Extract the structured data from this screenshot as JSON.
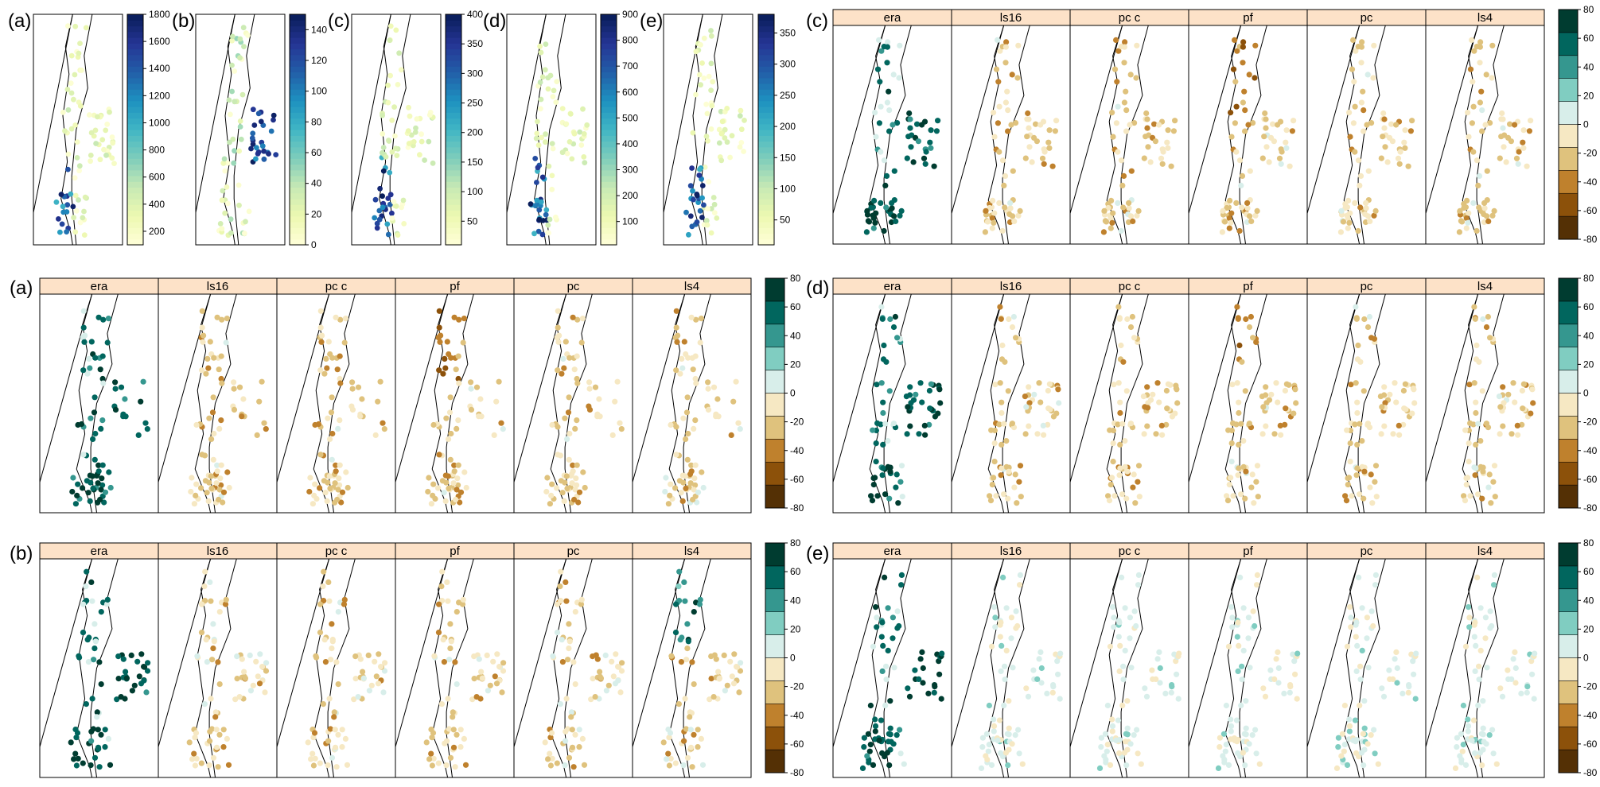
{
  "figure": {
    "panel_labels": [
      "(a)",
      "(b)",
      "(c)",
      "(d)",
      "(e)"
    ]
  },
  "chart_data": [
    {
      "id": "top-a",
      "type": "scatter",
      "label": "(a)",
      "colormap": "YlGnBu",
      "clim": [
        100,
        1800
      ],
      "colorbar_ticks": [
        200,
        400,
        600,
        800,
        1000,
        1200,
        1400,
        1600,
        1800
      ],
      "seed": 11,
      "n": 85
    },
    {
      "id": "top-b",
      "type": "scatter",
      "label": "(b)",
      "colormap": "YlGnBu",
      "clim": [
        0,
        150
      ],
      "colorbar_ticks": [
        0,
        20,
        40,
        60,
        80,
        100,
        120,
        140
      ],
      "seed": 23,
      "n": 80
    },
    {
      "id": "top-c",
      "type": "scatter",
      "label": "(c)",
      "colormap": "YlGnBu",
      "clim": [
        10,
        400
      ],
      "colorbar_ticks": [
        50,
        100,
        150,
        200,
        250,
        300,
        350,
        400
      ],
      "seed": 37,
      "n": 85
    },
    {
      "id": "top-d",
      "type": "scatter",
      "label": "(d)",
      "colormap": "YlGnBu",
      "clim": [
        10,
        900
      ],
      "colorbar_ticks": [
        100,
        200,
        300,
        400,
        500,
        600,
        700,
        800,
        900
      ],
      "seed": 41,
      "n": 85
    },
    {
      "id": "top-e",
      "type": "scatter",
      "label": "(e)",
      "colormap": "YlGnBu",
      "clim": [
        10,
        380
      ],
      "colorbar_ticks": [
        50,
        100,
        150,
        200,
        250,
        300,
        350
      ],
      "seed": 53,
      "n": 85
    },
    {
      "id": "grid-c",
      "type": "scatter",
      "label": "(c)",
      "colormap": "BrBG",
      "clim": [
        -80,
        80
      ],
      "colorbar_ticks": [
        -80,
        -60,
        -40,
        -20,
        0,
        20,
        40,
        60,
        80
      ],
      "strips": [
        "era",
        "ls16",
        "pc_c",
        "pf",
        "pc",
        "ls4"
      ],
      "profile": "dry"
    },
    {
      "id": "grid-a",
      "type": "scatter",
      "label": "(a)",
      "colormap": "BrBG",
      "clim": [
        -80,
        80
      ],
      "colorbar_ticks": [
        -80,
        -60,
        -40,
        -20,
        0,
        20,
        40,
        60,
        80
      ],
      "strips": [
        "era",
        "ls16",
        "pc_c",
        "pf",
        "pc",
        "ls4"
      ],
      "profile": "dry"
    },
    {
      "id": "grid-d",
      "type": "scatter",
      "label": "(d)",
      "colormap": "BrBG",
      "clim": [
        -80,
        80
      ],
      "colorbar_ticks": [
        -80,
        -60,
        -40,
        -20,
        0,
        20,
        40,
        60,
        80
      ],
      "strips": [
        "era",
        "ls16",
        "pc_c",
        "pf",
        "pc",
        "ls4"
      ],
      "profile": "dry"
    },
    {
      "id": "grid-b",
      "type": "scatter",
      "label": "(b)",
      "colormap": "BrBG",
      "clim": [
        -80,
        80
      ],
      "colorbar_ticks": [
        -80,
        -60,
        -40,
        -20,
        0,
        20,
        40,
        60,
        80
      ],
      "strips": [
        "era",
        "ls16",
        "pc_c",
        "pf",
        "pc",
        "ls4"
      ],
      "profile": "mixed"
    },
    {
      "id": "grid-e",
      "type": "scatter",
      "label": "(e)",
      "colormap": "BrBG",
      "clim": [
        -80,
        80
      ],
      "colorbar_ticks": [
        -80,
        -60,
        -40,
        -20,
        0,
        20,
        40,
        60,
        80
      ],
      "strips": [
        "era",
        "ls16",
        "pc_c",
        "pf",
        "pc",
        "ls4"
      ],
      "profile": "wet"
    }
  ],
  "colors": {
    "YlGnBu": [
      "#ffffd9",
      "#edf8b1",
      "#c7e9b4",
      "#7fcdbb",
      "#41b6c4",
      "#1d91c0",
      "#225ea8",
      "#253494",
      "#081d58"
    ],
    "BrBG": [
      "#543005",
      "#8c510a",
      "#bf812d",
      "#dfc27d",
      "#f6e8c3",
      "#d8eeea",
      "#80cdc1",
      "#35978f",
      "#01665e",
      "#003c30"
    ],
    "strip_fill": "#fde2c8",
    "frame": "#000000"
  }
}
